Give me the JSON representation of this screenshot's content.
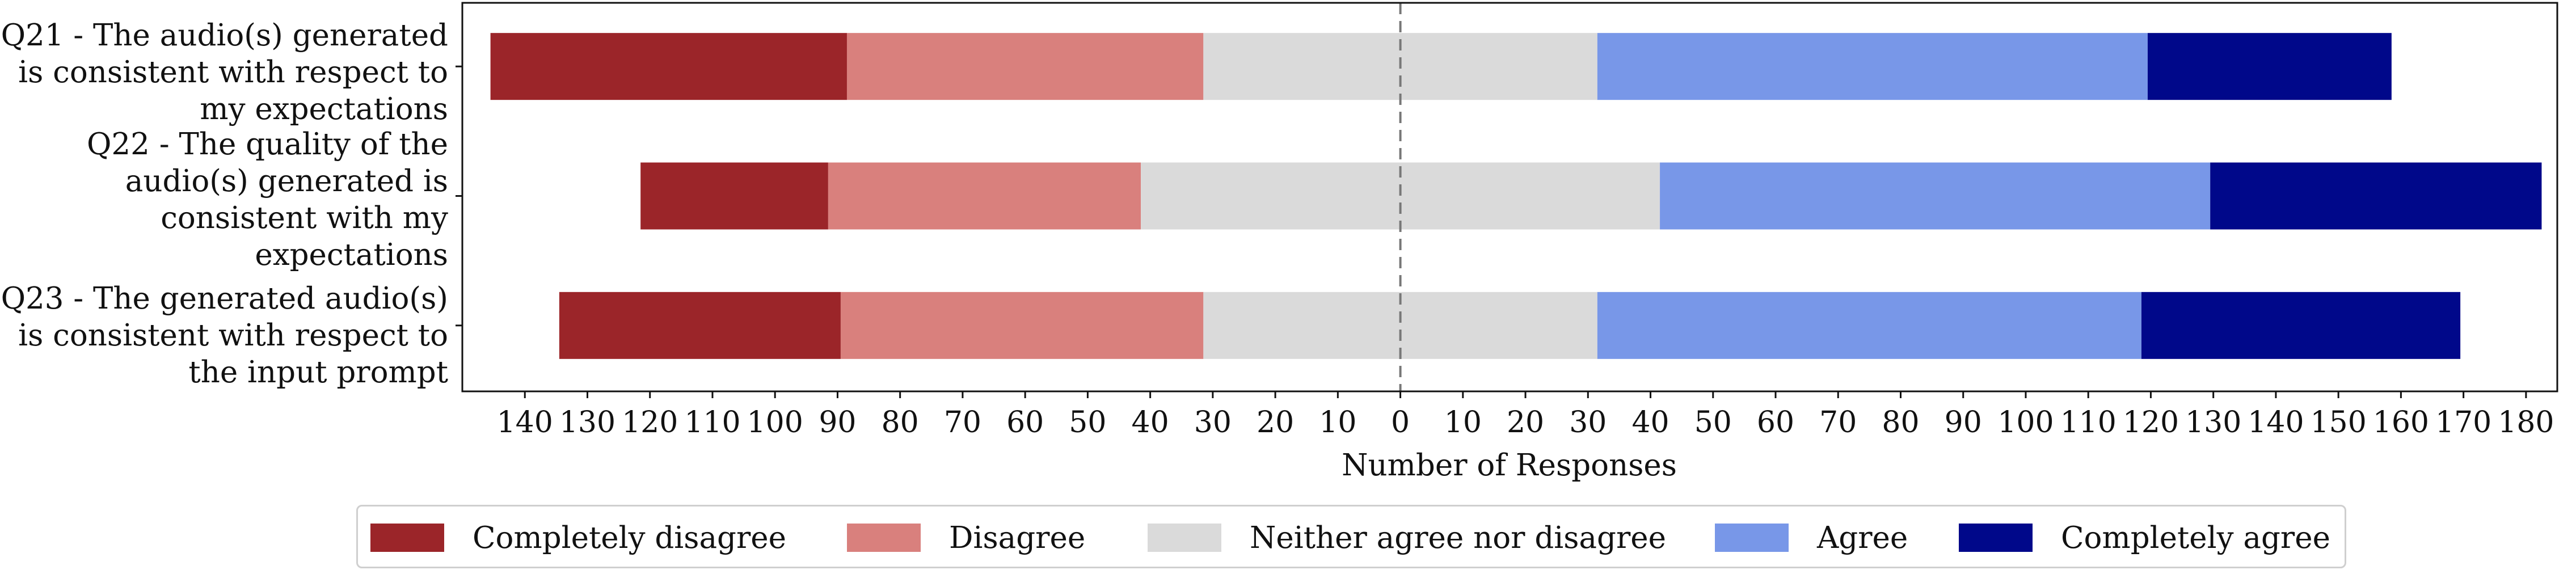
{
  "chart_data": {
    "type": "bar",
    "orientation": "horizontal-diverging",
    "title": "",
    "xlabel": "Number of Responses",
    "ylabel": "",
    "xlim": [
      -150,
      185
    ],
    "x_ticks": [
      -140,
      -130,
      -120,
      -110,
      -100,
      -90,
      -80,
      -70,
      -60,
      -50,
      -40,
      -30,
      -20,
      -10,
      0,
      10,
      20,
      30,
      40,
      50,
      60,
      70,
      80,
      90,
      100,
      110,
      120,
      130,
      140,
      150,
      160,
      170,
      180
    ],
    "x_tick_labels": [
      "140",
      "130",
      "120",
      "110",
      "100",
      "90",
      "80",
      "70",
      "60",
      "50",
      "40",
      "30",
      "20",
      "10",
      "0",
      "10",
      "20",
      "30",
      "40",
      "50",
      "60",
      "70",
      "80",
      "90",
      "100",
      "110",
      "120",
      "130",
      "140",
      "150",
      "160",
      "170",
      "180"
    ],
    "center_line": "dashed at 0",
    "legend_position": "bottom",
    "categories": [
      "Q21 - The audio(s) generated is consistent with respect to my expectations",
      "Q22 - The quality of the audio(s) generated is consistent with my expectations",
      "Q23 - The generated audio(s) is consistent with respect to the input prompt"
    ],
    "category_label_lines": [
      [
        "Q21 - The audio(s) generated",
        "is consistent with respect to",
        "my expectations"
      ],
      [
        "Q22 - The quality of the",
        "audio(s) generated is",
        "consistent with my",
        "expectations"
      ],
      [
        "Q23 - The generated audio(s)",
        "is consistent with respect to",
        "the input prompt"
      ]
    ],
    "series": [
      {
        "name": "Completely disagree",
        "color": "#9b2529",
        "values": [
          57,
          30,
          45
        ]
      },
      {
        "name": "Disagree",
        "color": "#d9807d",
        "values": [
          57,
          50,
          58
        ]
      },
      {
        "name": "Neither agree nor disagree",
        "color": "#dadada",
        "values": [
          63,
          83,
          63
        ]
      },
      {
        "name": "Agree",
        "color": "#7897e8",
        "values": [
          88,
          88,
          87
        ]
      },
      {
        "name": "Completely agree",
        "color": "#00088a",
        "values": [
          39,
          53,
          51
        ]
      }
    ]
  }
}
